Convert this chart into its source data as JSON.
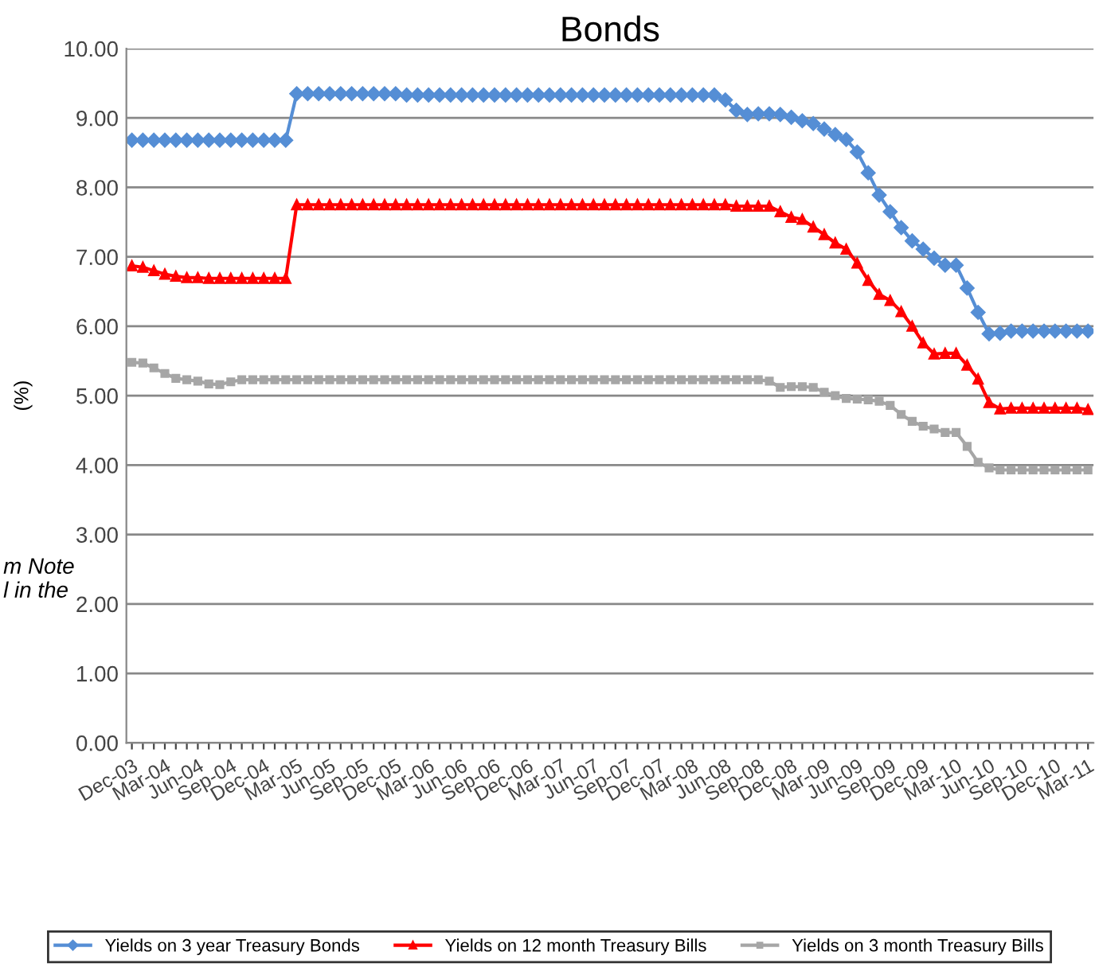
{
  "chart_data": {
    "type": "line",
    "title": "Bonds",
    "ylabel": "(%)",
    "categories": [
      "Dec-03",
      null,
      null,
      "Mar-04",
      null,
      null,
      "Jun-04",
      null,
      null,
      "Sep-04",
      null,
      null,
      "Dec-04",
      null,
      null,
      "Mar-05",
      null,
      null,
      "Jun-05",
      null,
      null,
      "Sep-05",
      null,
      null,
      "Dec-05",
      null,
      null,
      "Mar-06",
      null,
      null,
      "Jun-06",
      null,
      null,
      "Sep-06",
      null,
      null,
      "Dec-06",
      null,
      null,
      "Mar-07",
      null,
      null,
      "Jun-07",
      null,
      null,
      "Sep-07",
      null,
      null,
      "Dec-07",
      null,
      null,
      "Mar-08",
      null,
      null,
      "Jun-08",
      null,
      null,
      "Sep-08",
      null,
      null,
      "Dec-08",
      null,
      null,
      "Mar-09",
      null,
      null,
      "Jun-09",
      null,
      null,
      "Sep-09",
      null,
      null,
      "Dec-09",
      null,
      null,
      "Mar-10",
      null,
      null,
      "Jun-10",
      null,
      null,
      "Sep-10",
      null,
      null,
      "Dec-10",
      null,
      null,
      "Mar-11"
    ],
    "series": [
      {
        "name": "Yields on 3 year Treasury Bonds",
        "color": "#558ed5",
        "marker": "diamond",
        "values": [
          8.68,
          8.68,
          8.68,
          8.68,
          8.68,
          8.68,
          8.68,
          8.68,
          8.68,
          8.68,
          8.68,
          8.68,
          8.68,
          8.68,
          8.68,
          9.35,
          9.35,
          9.35,
          9.35,
          9.35,
          9.35,
          9.35,
          9.35,
          9.35,
          9.35,
          9.33,
          9.33,
          9.33,
          9.33,
          9.33,
          9.33,
          9.33,
          9.33,
          9.33,
          9.33,
          9.33,
          9.33,
          9.33,
          9.33,
          9.33,
          9.33,
          9.33,
          9.33,
          9.33,
          9.33,
          9.33,
          9.33,
          9.33,
          9.33,
          9.33,
          9.33,
          9.33,
          9.33,
          9.33,
          9.26,
          9.11,
          9.05,
          9.06,
          9.06,
          9.05,
          9.01,
          8.96,
          8.92,
          8.84,
          8.76,
          8.69,
          8.51,
          8.21,
          7.89,
          7.65,
          7.42,
          7.23,
          7.11,
          6.98,
          6.88,
          6.88,
          6.55,
          6.2,
          5.89,
          5.9,
          5.93,
          5.93,
          5.93,
          5.93,
          5.93,
          5.93,
          5.93,
          5.93
        ]
      },
      {
        "name": "Yields on 12 month Treasury Bills",
        "color": "#ff0000",
        "marker": "triangle",
        "values": [
          6.87,
          6.85,
          6.8,
          6.75,
          6.72,
          6.7,
          6.7,
          6.69,
          6.69,
          6.69,
          6.69,
          6.69,
          6.69,
          6.69,
          6.69,
          7.75,
          7.75,
          7.75,
          7.75,
          7.75,
          7.75,
          7.75,
          7.75,
          7.75,
          7.75,
          7.75,
          7.75,
          7.75,
          7.75,
          7.75,
          7.75,
          7.75,
          7.75,
          7.75,
          7.75,
          7.75,
          7.75,
          7.75,
          7.75,
          7.75,
          7.75,
          7.75,
          7.75,
          7.75,
          7.75,
          7.75,
          7.75,
          7.75,
          7.75,
          7.75,
          7.75,
          7.75,
          7.75,
          7.75,
          7.75,
          7.73,
          7.73,
          7.73,
          7.73,
          7.65,
          7.57,
          7.54,
          7.43,
          7.32,
          7.2,
          7.11,
          6.91,
          6.66,
          6.46,
          6.37,
          6.21,
          6.0,
          5.76,
          5.6,
          5.61,
          5.61,
          5.44,
          5.24,
          4.9,
          4.81,
          4.82,
          4.82,
          4.82,
          4.82,
          4.82,
          4.82,
          4.82,
          4.8
        ]
      },
      {
        "name": "Yields on 3 month Treasury Bills",
        "color": "#a6a6a6",
        "marker": "square",
        "values": [
          5.48,
          5.47,
          5.4,
          5.32,
          5.25,
          5.23,
          5.21,
          5.17,
          5.16,
          5.2,
          5.23,
          5.23,
          5.23,
          5.23,
          5.23,
          5.23,
          5.23,
          5.23,
          5.23,
          5.23,
          5.23,
          5.23,
          5.23,
          5.23,
          5.23,
          5.23,
          5.23,
          5.23,
          5.23,
          5.23,
          5.23,
          5.23,
          5.23,
          5.23,
          5.23,
          5.23,
          5.23,
          5.23,
          5.23,
          5.23,
          5.23,
          5.23,
          5.23,
          5.23,
          5.23,
          5.23,
          5.23,
          5.23,
          5.23,
          5.23,
          5.23,
          5.23,
          5.23,
          5.23,
          5.23,
          5.23,
          5.23,
          5.23,
          5.21,
          5.12,
          5.13,
          5.13,
          5.12,
          5.05,
          5.0,
          4.96,
          4.95,
          4.94,
          4.92,
          4.86,
          4.73,
          4.63,
          4.56,
          4.52,
          4.47,
          4.47,
          4.27,
          4.04,
          3.96,
          3.93,
          3.93,
          3.93,
          3.93,
          3.93,
          3.93,
          3.93,
          3.93,
          3.93
        ]
      }
    ],
    "ylim": [
      0,
      10
    ],
    "yticks": [
      {
        "value": 0,
        "label": "0.00"
      },
      {
        "value": 1,
        "label": "1.00"
      },
      {
        "value": 2,
        "label": "2.00"
      },
      {
        "value": 3,
        "label": "3.00"
      },
      {
        "value": 4,
        "label": "4.00"
      },
      {
        "value": 5,
        "label": "5.00"
      },
      {
        "value": 6,
        "label": "6.00"
      },
      {
        "value": 7,
        "label": "7.00"
      },
      {
        "value": 8,
        "label": "8.00"
      },
      {
        "value": 9,
        "label": "9.00"
      },
      {
        "value": 10,
        "label": "10.00"
      }
    ],
    "grid": "y",
    "legend": "bottom",
    "line_style": "solid",
    "annotations": [
      "m Note\nl in the"
    ]
  }
}
